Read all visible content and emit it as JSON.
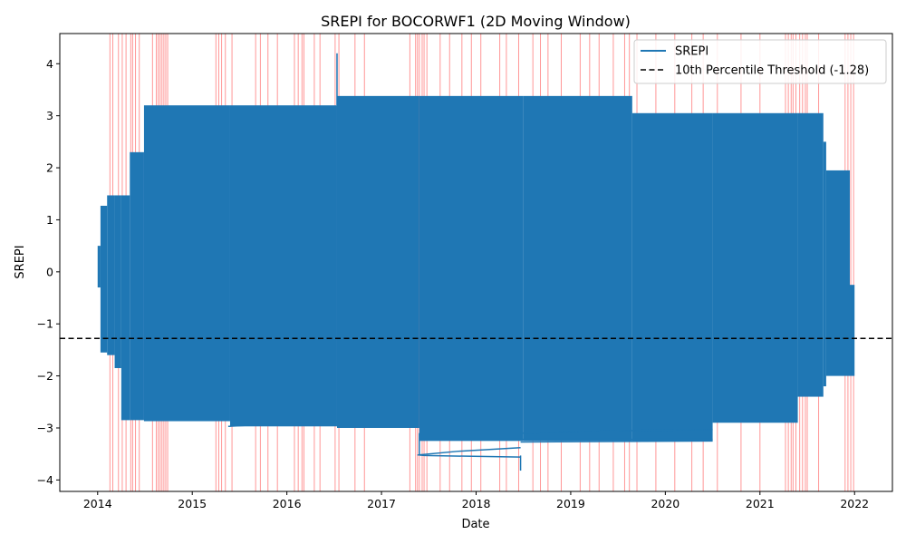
{
  "chart_data": {
    "type": "line",
    "title": "SREPI for BOCORWF1 (2D Moving Window)",
    "xlabel": "Date",
    "ylabel": "SREPI",
    "x_ticks": [
      "2014",
      "2015",
      "2016",
      "2017",
      "2018",
      "2019",
      "2020",
      "2021",
      "2022"
    ],
    "y_ticks": [
      "−4",
      "−3",
      "−2",
      "−1",
      "0",
      "1",
      "2",
      "3",
      "4"
    ],
    "xlim": [
      2013.6,
      2022.4
    ],
    "ylim": [
      -4.22,
      4.58
    ],
    "grid": false,
    "legend_position": "top-right",
    "legend": {
      "series_label": "SREPI",
      "threshold_label": "10th Percentile Threshold (-1.28)"
    },
    "colors": {
      "series": "#1f77b4",
      "threshold": "#000000",
      "drought_band": "#ff6b6b"
    },
    "threshold": -1.28,
    "series": [
      {
        "name": "SREPI",
        "bands": [
          {
            "x0": 2014.0,
            "x1": 2014.03,
            "ymin": -0.3,
            "ymax": 0.5
          },
          {
            "x0": 2014.03,
            "x1": 2014.1,
            "ymin": -1.55,
            "ymax": 1.27
          },
          {
            "x0": 2014.1,
            "x1": 2014.18,
            "ymin": -1.6,
            "ymax": 1.47
          },
          {
            "x0": 2014.18,
            "x1": 2014.25,
            "ymin": -1.85,
            "ymax": 1.47
          },
          {
            "x0": 2014.25,
            "x1": 2014.34,
            "ymin": -2.85,
            "ymax": 1.47
          },
          {
            "x0": 2014.34,
            "x1": 2014.49,
            "ymin": -2.85,
            "ymax": 2.3
          },
          {
            "x0": 2014.49,
            "x1": 2015.4,
            "ymin": -2.87,
            "ymax": 3.2
          },
          {
            "x0": 2015.4,
            "x1": 2016.53,
            "ymin": -2.97,
            "ymax": 3.2
          },
          {
            "x0": 2016.53,
            "x1": 2017.4,
            "ymin": -3.0,
            "ymax": 3.38
          },
          {
            "x0": 2017.4,
            "x1": 2018.5,
            "ymin": -3.25,
            "ymax": 3.38
          },
          {
            "x0": 2018.5,
            "x1": 2019.65,
            "ymin": -3.25,
            "ymax": 3.38
          },
          {
            "x0": 2019.65,
            "x1": 2020.5,
            "ymin": -3.25,
            "ymax": 3.05
          },
          {
            "x0": 2020.5,
            "x1": 2021.4,
            "ymin": -2.9,
            "ymax": 3.05
          },
          {
            "x0": 2021.4,
            "x1": 2021.67,
            "ymin": -2.4,
            "ymax": 3.05
          },
          {
            "x0": 2021.67,
            "x1": 2021.7,
            "ymin": -2.2,
            "ymax": 2.5
          },
          {
            "x0": 2021.7,
            "x1": 2021.95,
            "ymin": -2.0,
            "ymax": 1.95
          },
          {
            "x0": 2021.95,
            "x1": 2022.0,
            "ymin": -2.0,
            "ymax": -0.25
          }
        ],
        "spikes": [
          {
            "x": 2016.53,
            "y0": 3.2,
            "y1": 4.2
          },
          {
            "x": 2017.4,
            "y0": -3.1,
            "y1": -3.53
          },
          {
            "x": 2018.47,
            "y0": -3.53,
            "y1": -3.82
          }
        ],
        "lines": [
          {
            "x": [
              2015.38,
              2015.9,
              2016.53
            ],
            "y": [
              -2.97,
              -2.92,
              -2.87
            ]
          },
          {
            "x": [
              2017.4,
              2017.45,
              2018.47
            ],
            "y": [
              -3.52,
              -3.53,
              -3.56
            ]
          },
          {
            "x": [
              2017.38,
              2017.8,
              2018.47
            ],
            "y": [
              -3.52,
              -3.45,
              -3.38
            ]
          },
          {
            "x": [
              2017.4,
              2018.47,
              2019.65,
              2020.5
            ],
            "y": [
              -3.1,
              -3.1,
              -3.05,
              -3.03
            ]
          },
          {
            "x": [
              2017.4,
              2020.5
            ],
            "y": [
              -3.22,
              -3.22
            ]
          },
          {
            "x": [
              2018.47,
              2020.5
            ],
            "y": [
              -3.27,
              -3.25
            ]
          }
        ]
      }
    ],
    "drought_periods": [
      2014.13,
      2014.16,
      2014.22,
      2014.26,
      2014.3,
      2014.35,
      2014.37,
      2014.4,
      2014.44,
      2014.58,
      2014.62,
      2014.64,
      2014.66,
      2014.68,
      2014.7,
      2014.72,
      2014.74,
      2015.25,
      2015.28,
      2015.31,
      2015.35,
      2015.42,
      2015.67,
      2015.72,
      2015.8,
      2015.9,
      2016.08,
      2016.12,
      2016.16,
      2016.18,
      2016.29,
      2016.35,
      2016.51,
      2016.55,
      2016.72,
      2016.82,
      2017.3,
      2017.36,
      2017.38,
      2017.4,
      2017.43,
      2017.45,
      2017.48,
      2017.62,
      2017.72,
      2017.85,
      2017.95,
      2018.05,
      2018.25,
      2018.32,
      2018.45,
      2018.6,
      2018.68,
      2018.76,
      2018.9,
      2019.1,
      2019.2,
      2019.3,
      2019.45,
      2019.57,
      2019.62,
      2019.7,
      2019.9,
      2020.1,
      2020.28,
      2020.4,
      2020.55,
      2020.8,
      2021.0,
      2021.27,
      2021.3,
      2021.33,
      2021.35,
      2021.38,
      2021.42,
      2021.45,
      2021.48,
      2021.5,
      2021.62,
      2021.9,
      2021.93,
      2021.96,
      2021.99
    ]
  }
}
